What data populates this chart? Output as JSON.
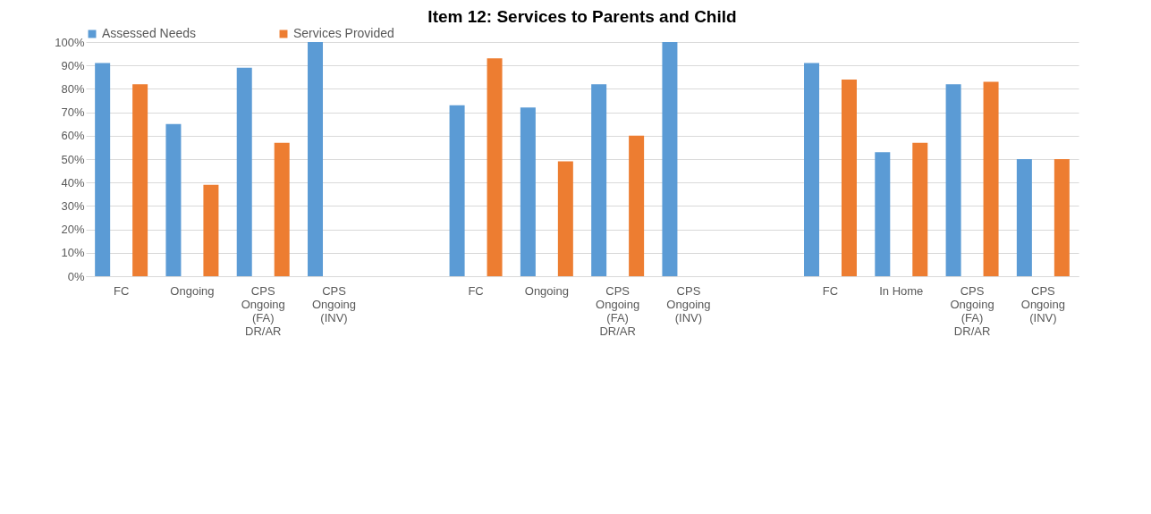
{
  "chart_data": {
    "type": "bar",
    "title": "Item 12: Services to Parents and Child",
    "categories": [
      "FC",
      "Ongoing",
      "CPS\nOngoing\n(FA)\nDR/AR",
      "CPS\nOngoing\n(INV)",
      null,
      "FC",
      "Ongoing",
      "CPS\nOngoing\n(FA)\nDR/AR",
      "CPS\nOngoing\n(INV)",
      null,
      "FC",
      "In Home",
      "CPS\nOngoing\n(FA)\nDR/AR",
      "CPS\nOngoing\n(INV)"
    ],
    "series": [
      {
        "name": "Assessed Needs",
        "color": "#5b9bd5",
        "values": [
          91,
          65,
          89,
          100,
          null,
          73,
          72,
          82,
          100,
          null,
          91,
          53,
          82,
          50
        ]
      },
      {
        "name": "Services Provided",
        "color": "#ed7d31",
        "values": [
          82,
          39,
          57,
          null,
          null,
          93,
          49,
          60,
          null,
          null,
          84,
          57,
          83,
          50
        ]
      }
    ],
    "ylim": [
      0,
      100
    ],
    "yticks": [
      {
        "value": 0,
        "label": "0%"
      },
      {
        "value": 10,
        "label": "10%"
      },
      {
        "value": 20,
        "label": "20%"
      },
      {
        "value": 30,
        "label": "30%"
      },
      {
        "value": 40,
        "label": "40%"
      },
      {
        "value": 50,
        "label": "50%"
      },
      {
        "value": 60,
        "label": "60%"
      },
      {
        "value": 70,
        "label": "70%"
      },
      {
        "value": 80,
        "label": "80%"
      },
      {
        "value": 90,
        "label": "90%"
      },
      {
        "value": 100,
        "label": "100%"
      }
    ],
    "grid": "y",
    "legend": "top"
  }
}
